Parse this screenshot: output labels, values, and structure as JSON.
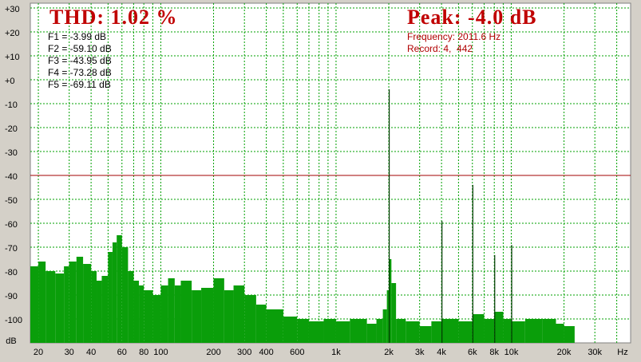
{
  "chart_data": {
    "type": "spectrum",
    "thd_label": "THD: 1.02 %",
    "peak_label": "Peak: -4.0 dB",
    "info": [
      "Frequency: 2011.6 Hz",
      "Record: 4,  442"
    ],
    "harmonic_labels": [
      "F1 = -3.99 dB",
      "F2 = -59.10 dB",
      "F3 = -43.95 dB",
      "F4 = -73.28 dB",
      "F5 = -69.11 dB"
    ],
    "x_label": "Hz",
    "y_label": "dB",
    "log_x": true,
    "grid": true,
    "xlim": [
      18,
      48000
    ],
    "ylim": [
      -110,
      32
    ],
    "xticks": [
      20,
      30,
      40,
      60,
      80,
      100,
      200,
      300,
      400,
      600,
      {
        "value": 1000,
        "label": "1k"
      },
      {
        "value": 2000,
        "label": "2k"
      },
      {
        "value": 3000,
        "label": "3k"
      },
      {
        "value": 4000,
        "label": "4k"
      },
      {
        "value": 6000,
        "label": "6k"
      },
      {
        "value": 8000,
        "label": "8k"
      },
      {
        "value": 10000,
        "label": "10k"
      },
      {
        "value": 20000,
        "label": "20k"
      },
      {
        "value": 30000,
        "label": "30k"
      }
    ],
    "x_minor_ticks": [
      50,
      70,
      90,
      500,
      700,
      800,
      900,
      5000,
      7000,
      9000,
      40000
    ],
    "yticks": [
      {
        "value": 30,
        "label": "+30"
      },
      {
        "value": 20,
        "label": "+20"
      },
      {
        "value": 10,
        "label": "+10"
      },
      {
        "value": 0,
        "label": "+0"
      },
      -10,
      -20,
      -30,
      -40,
      -50,
      -60,
      -70,
      -80,
      -90,
      -100
    ],
    "reference_line": -40,
    "reference_color": "#a00000",
    "grid_color": "#00a000",
    "noise": {
      "color": "#0a9e0a",
      "x": [
        18,
        20,
        22,
        25,
        28,
        30,
        33,
        36,
        40,
        43,
        46,
        50,
        53,
        56,
        60,
        65,
        70,
        75,
        80,
        90,
        100,
        110,
        120,
        130,
        150,
        170,
        200,
        230,
        260,
        300,
        350,
        400,
        500,
        600,
        700,
        850,
        1000,
        1200,
        1500,
        1700,
        1850,
        1950,
        2000,
        2070,
        2200,
        2500,
        3000,
        3500,
        4000,
        5000,
        6000,
        7000,
        8000,
        9000,
        10000,
        12000,
        15000,
        18000,
        20000,
        23000
      ],
      "values": [
        -78,
        -76,
        -80,
        -81,
        -78,
        -76,
        -74,
        -77,
        -80,
        -84,
        -82,
        -72,
        -68,
        -65,
        -70,
        -80,
        -84,
        -86,
        -88,
        -90,
        -86,
        -83,
        -86,
        -84,
        -88,
        -87,
        -83,
        -88,
        -86,
        -90,
        -94,
        -96,
        -99,
        -100,
        -101,
        -100,
        -101,
        -100,
        -102,
        -100,
        -96,
        -88,
        -75,
        -85,
        -100,
        -101,
        -103,
        -101,
        -100,
        -101,
        -98,
        -100,
        -97,
        -100,
        -101,
        -100,
        -100,
        -102,
        -103,
        -110
      ]
    },
    "harmonics": {
      "color": "#003800",
      "x": [
        2011.6,
        4023.2,
        6034.8,
        8046.4,
        10058
      ],
      "values": [
        -3.99,
        -59.1,
        -43.95,
        -73.28,
        -69.11
      ]
    }
  }
}
